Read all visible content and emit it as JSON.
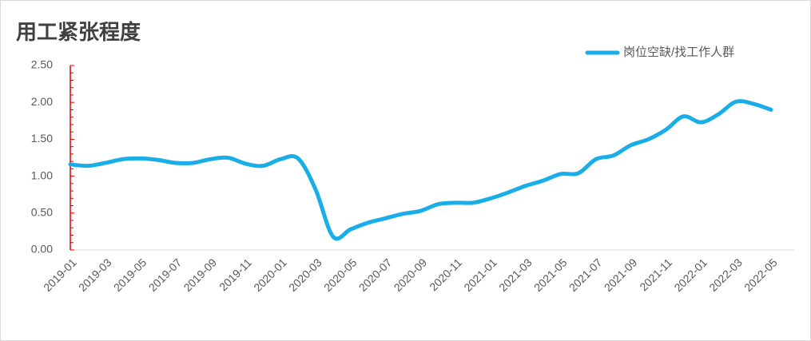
{
  "chart_data": {
    "type": "line",
    "title": "用工紧张程度",
    "categories": [
      "2019-01",
      null,
      "2019-03",
      null,
      "2019-05",
      null,
      "2019-07",
      null,
      "2019-09",
      null,
      "2019-11",
      null,
      "2020-01",
      null,
      "2020-03",
      null,
      "2020-05",
      null,
      "2020-07",
      null,
      "2020-09",
      null,
      "2020-11",
      null,
      "2021-01",
      null,
      "2021-03",
      null,
      "2021-05",
      null,
      "2021-07",
      null,
      "2021-09",
      null,
      "2021-11",
      null,
      "2022-01",
      null,
      "2022-03",
      null,
      "2022-05"
    ],
    "series": [
      {
        "name": "岗位空缺/找工作人群",
        "color": "#1aaee8",
        "values": [
          1.16,
          1.14,
          1.18,
          1.23,
          1.24,
          1.22,
          1.18,
          1.18,
          1.23,
          1.25,
          1.17,
          1.14,
          1.23,
          1.24,
          0.82,
          0.18,
          0.28,
          0.37,
          0.43,
          0.49,
          0.53,
          0.62,
          0.64,
          0.64,
          0.7,
          0.78,
          0.87,
          0.94,
          1.03,
          1.04,
          1.23,
          1.28,
          1.42,
          1.5,
          1.63,
          1.81,
          1.73,
          1.84,
          2.01,
          1.98,
          1.9
        ]
      }
    ],
    "ylim": [
      0,
      2.5
    ],
    "yticks": [
      {
        "value": 0,
        "label": "0.00"
      },
      {
        "value": 0.5,
        "label": "0.50"
      },
      {
        "value": 1,
        "label": "1.00"
      },
      {
        "value": 1.5,
        "label": "1.50"
      },
      {
        "value": 2,
        "label": "2.00"
      },
      {
        "value": 2.5,
        "label": "2.50"
      }
    ],
    "legend": "top-right",
    "grid": false
  }
}
